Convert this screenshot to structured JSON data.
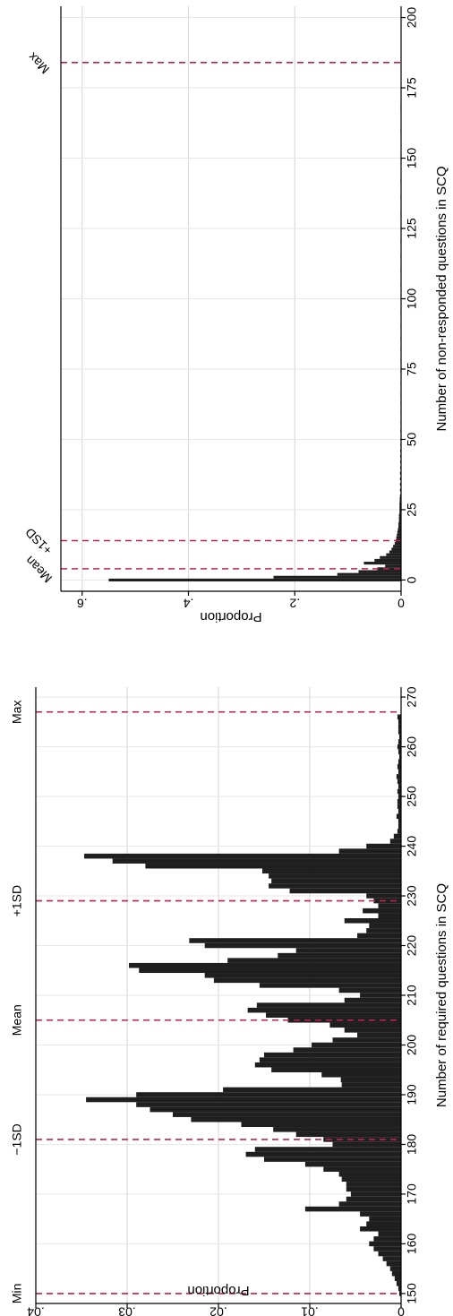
{
  "chart_data": [
    {
      "type": "bar",
      "orientation": "horizontal",
      "xlabel": "Number of required questions in SCQ",
      "ylabel": "Proportion",
      "xlim": [
        148,
        272
      ],
      "ylim": [
        0,
        0.04
      ],
      "xticks": [
        150,
        160,
        170,
        180,
        190,
        200,
        210,
        220,
        230,
        240,
        250,
        260,
        270
      ],
      "yticks": [
        "0",
        ".01",
        ".02",
        ".03",
        ".04"
      ],
      "ytick_values": [
        0,
        0.01,
        0.02,
        0.03,
        0.04
      ],
      "grid": true,
      "bin_width": 1,
      "x": [
        150,
        151,
        152,
        153,
        154,
        155,
        156,
        157,
        158,
        159,
        160,
        161,
        162,
        163,
        164,
        165,
        166,
        167,
        168,
        169,
        170,
        171,
        172,
        173,
        174,
        175,
        176,
        177,
        178,
        179,
        180,
        181,
        182,
        183,
        184,
        185,
        186,
        187,
        188,
        189,
        190,
        191,
        192,
        193,
        194,
        195,
        196,
        197,
        198,
        199,
        200,
        201,
        202,
        203,
        204,
        205,
        206,
        207,
        208,
        209,
        210,
        211,
        212,
        213,
        214,
        215,
        216,
        217,
        218,
        219,
        220,
        221,
        222,
        223,
        224,
        225,
        226,
        227,
        228,
        229,
        230,
        231,
        232,
        233,
        234,
        235,
        236,
        237,
        238,
        239,
        240,
        241,
        242,
        243,
        244,
        245,
        246,
        247,
        248,
        249,
        250,
        251,
        252,
        253,
        254,
        255,
        256,
        257,
        258,
        259,
        260,
        261,
        262,
        263,
        264,
        265,
        266
      ],
      "values": [
        0.0002,
        0.0003,
        0.0005,
        0.0007,
        0.001,
        0.0012,
        0.0016,
        0.002,
        0.0025,
        0.003,
        0.0035,
        0.003,
        0.0025,
        0.0045,
        0.0038,
        0.0035,
        0.0045,
        0.0105,
        0.0068,
        0.006,
        0.0055,
        0.006,
        0.006,
        0.0065,
        0.0068,
        0.0085,
        0.0105,
        0.015,
        0.017,
        0.016,
        0.0075,
        0.0085,
        0.0115,
        0.014,
        0.0175,
        0.023,
        0.025,
        0.0275,
        0.029,
        0.0345,
        0.029,
        0.0195,
        0.0065,
        0.0066,
        0.0087,
        0.0142,
        0.016,
        0.0155,
        0.015,
        0.0118,
        0.0098,
        0.0075,
        0.0048,
        0.0062,
        0.0078,
        0.0124,
        0.0148,
        0.0168,
        0.0158,
        0.0062,
        0.0045,
        0.0068,
        0.0155,
        0.0205,
        0.0215,
        0.0287,
        0.0298,
        0.019,
        0.0135,
        0.0115,
        0.0215,
        0.0232,
        0.0048,
        0.0038,
        0.0035,
        0.0062,
        0.0025,
        0.0042,
        0.0025,
        0.003,
        0.0038,
        0.0122,
        0.0145,
        0.0142,
        0.0145,
        0.0152,
        0.028,
        0.0316,
        0.0347,
        0.0068,
        0.0038,
        0.0012,
        0.0008,
        0.0004,
        0.0003,
        0.0003,
        0.0005,
        0.0003,
        0.0004,
        0.0004,
        0.0003,
        0.0004,
        0.0003,
        0.0004,
        0.0005,
        0.0003,
        0.0004,
        0.0003,
        0.0002,
        0.0003,
        0.0004,
        0.0003,
        0.0002,
        0.0003,
        0.0003,
        0.0003,
        0.0004
      ],
      "reference_lines": [
        {
          "label": "Min",
          "x": 150
        },
        {
          "label": "−1SD",
          "x": 181
        },
        {
          "label": "Mean",
          "x": 205
        },
        {
          "label": "+1SD",
          "x": 229
        },
        {
          "label": "Max",
          "x": 267
        }
      ],
      "bar_color": "#1f1f1f",
      "reference_line_color": "#c0204a"
    },
    {
      "type": "bar",
      "orientation": "horizontal",
      "xlabel": "Number of non-responded questions in SCQ",
      "ylabel": "Proportion",
      "xlim": [
        -4,
        204
      ],
      "ylim": [
        0,
        0.64
      ],
      "xticks": [
        0,
        25,
        50,
        75,
        100,
        125,
        150,
        175,
        200
      ],
      "yticks": [
        "0",
        ".2",
        ".4",
        ".6"
      ],
      "ytick_values": [
        0,
        0.2,
        0.4,
        0.6
      ],
      "grid": true,
      "bin_width": 1,
      "x": [
        0,
        1,
        2,
        3,
        4,
        5,
        6,
        7,
        8,
        9,
        10,
        11,
        12,
        13,
        14,
        15,
        16,
        17,
        18,
        19,
        20,
        21,
        22,
        23,
        24,
        25,
        26,
        27,
        28,
        29,
        30,
        32,
        34,
        36,
        38,
        40,
        42,
        44,
        46,
        48,
        50,
        53,
        56,
        60,
        63,
        66,
        70,
        74,
        78,
        82,
        86,
        90,
        95,
        100,
        105,
        110,
        115,
        120,
        125,
        130,
        136,
        142,
        150,
        160,
        168
      ],
      "values": [
        0.55,
        0.24,
        0.12,
        0.08,
        0.045,
        0.03,
        0.07,
        0.05,
        0.04,
        0.028,
        0.022,
        0.018,
        0.015,
        0.012,
        0.01,
        0.009,
        0.008,
        0.007,
        0.006,
        0.005,
        0.005,
        0.004,
        0.004,
        0.004,
        0.003,
        0.003,
        0.003,
        0.003,
        0.0025,
        0.0025,
        0.002,
        0.002,
        0.002,
        0.002,
        0.002,
        0.0015,
        0.0015,
        0.0015,
        0.0015,
        0.0012,
        0.0012,
        0.0012,
        0.001,
        0.001,
        0.001,
        0.001,
        0.001,
        0.001,
        0.001,
        0.001,
        0.001,
        0.001,
        0.001,
        0.001,
        0.001,
        0.001,
        0.001,
        0.001,
        0.001,
        0.001,
        0.001,
        0.001,
        0.001,
        0.001,
        0.001
      ],
      "reference_lines": [
        {
          "label": "Mean",
          "x": 4
        },
        {
          "label": "+1SD",
          "x": 14
        },
        {
          "label": "Max",
          "x": 184
        }
      ],
      "bar_color": "#1f1f1f",
      "reference_line_color": "#c0204a"
    }
  ]
}
